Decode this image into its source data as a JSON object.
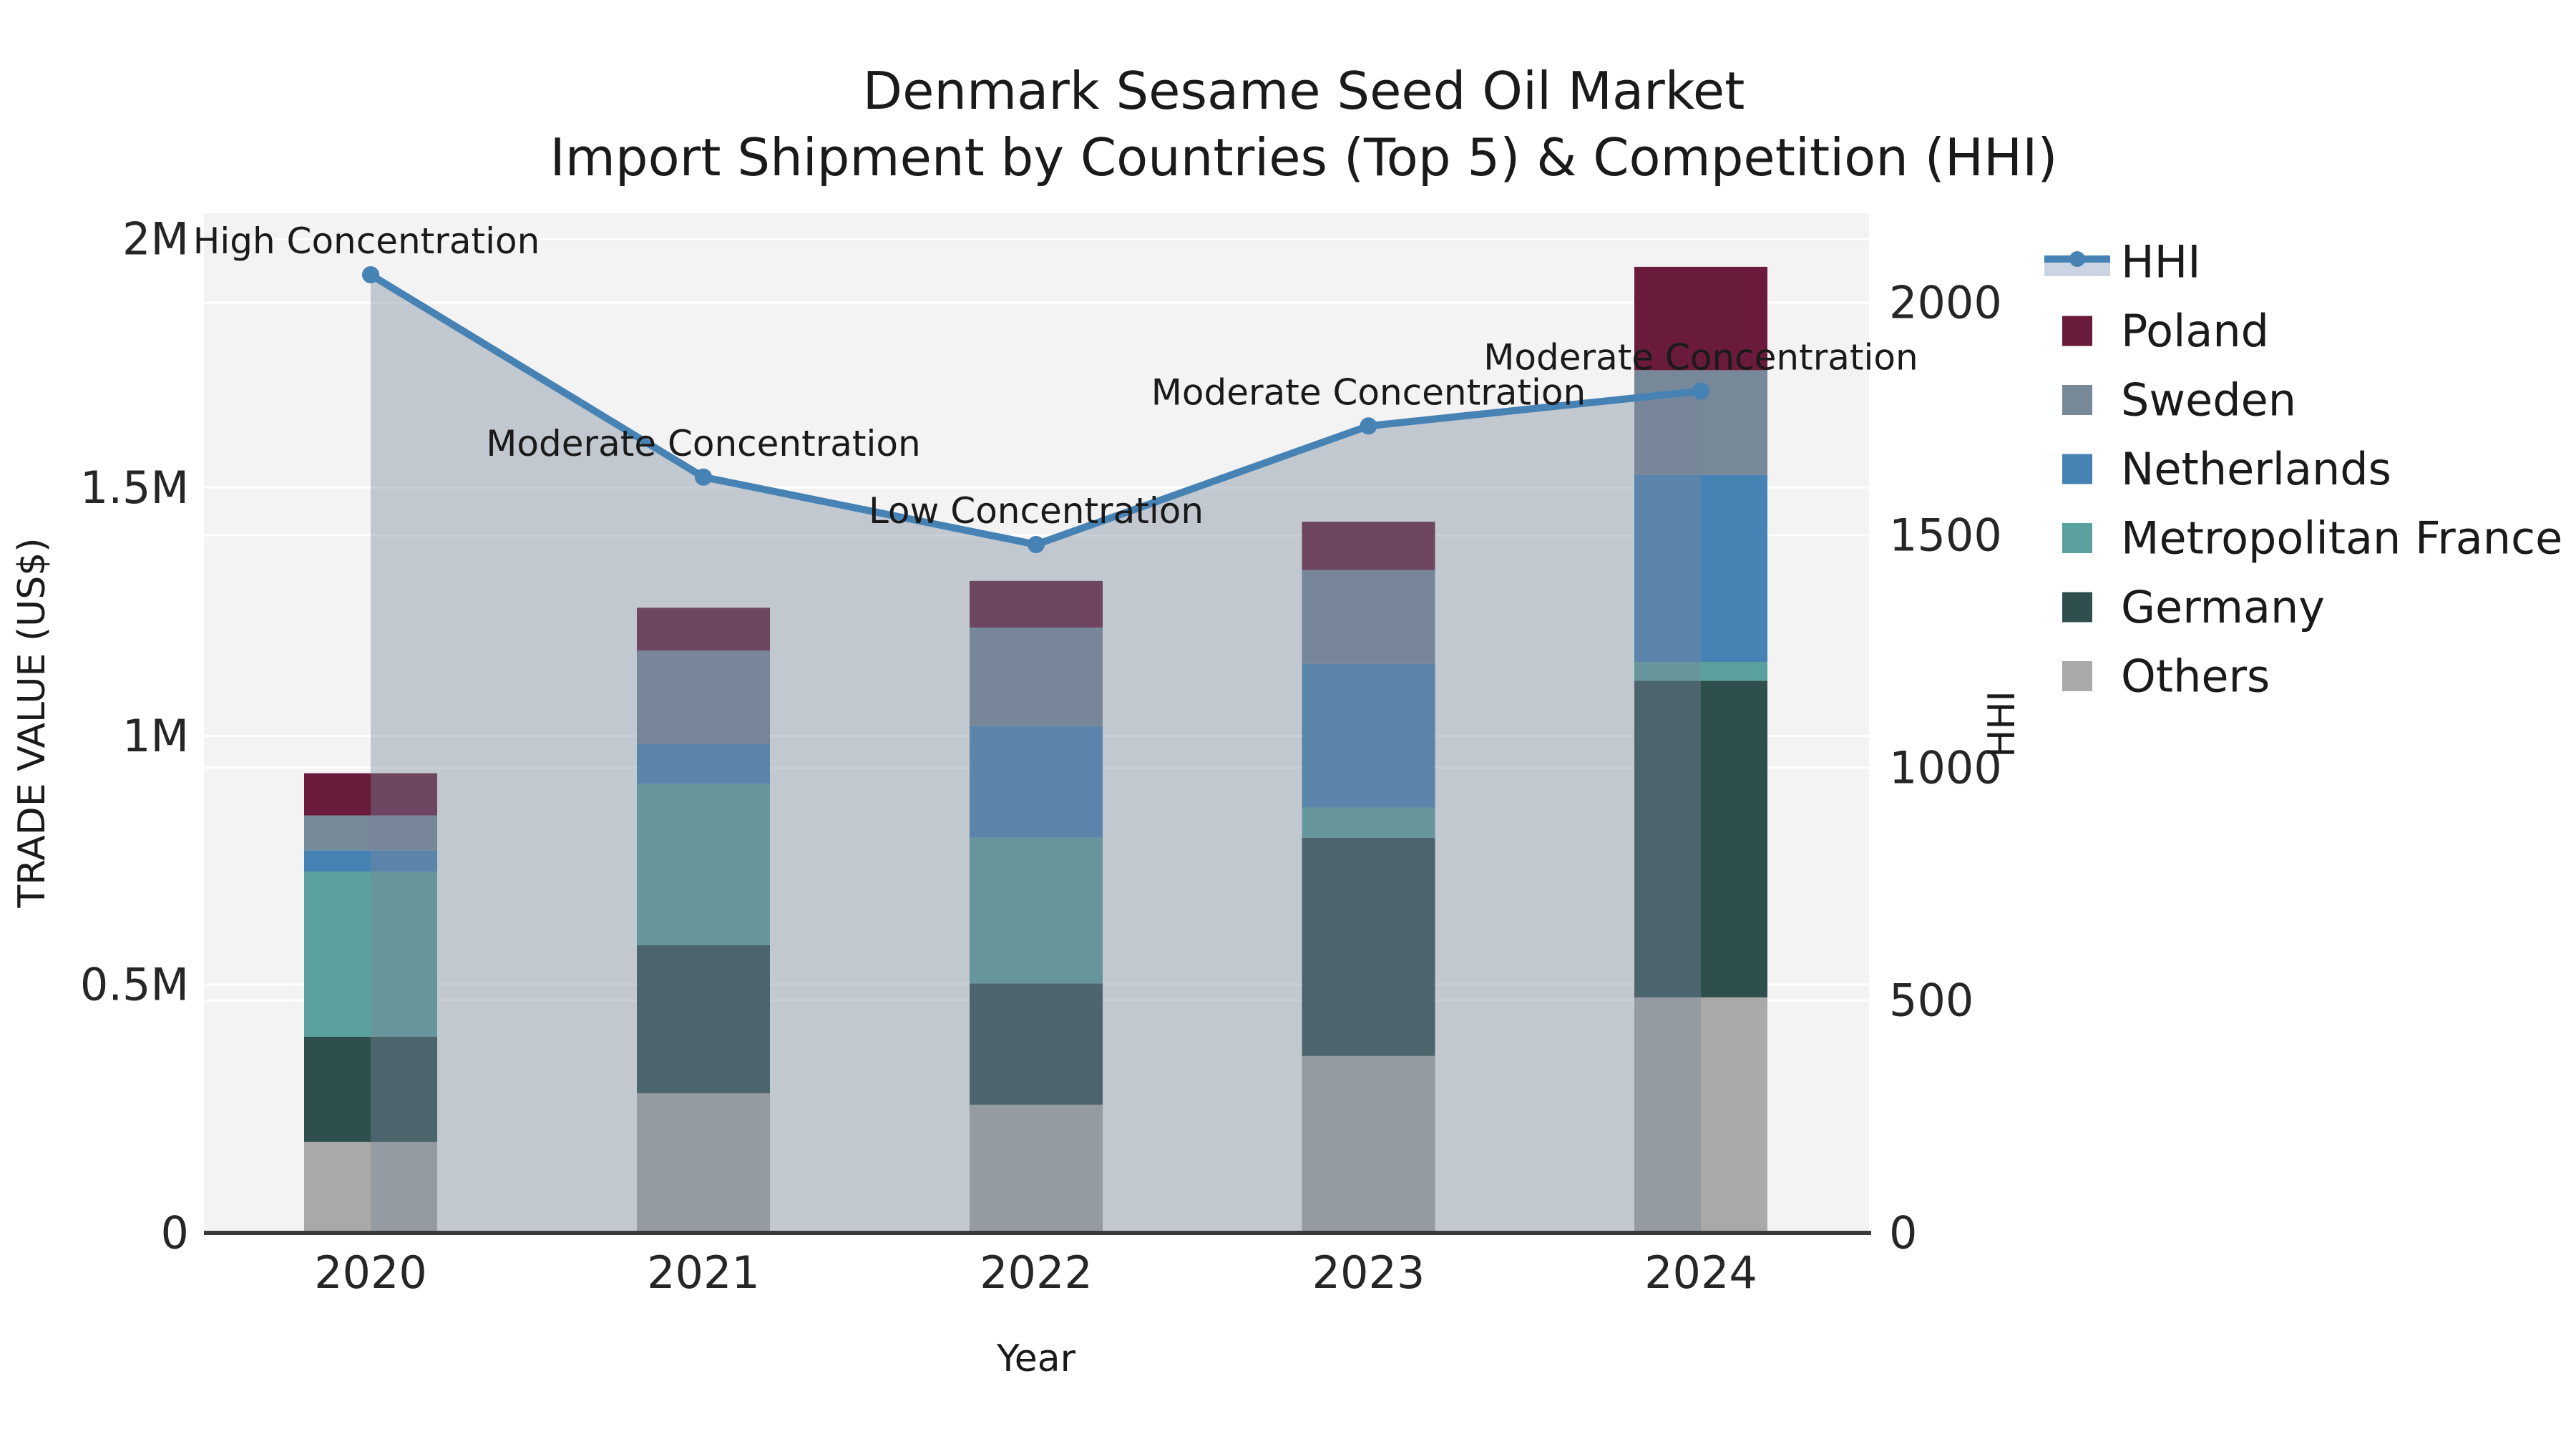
{
  "chart_data": {
    "type": "stacked-bar+line",
    "title": "Denmark Sesame Seed Oil Market",
    "subtitle": "Import Shipment by Countries (Top 5) & Competition (HHI)",
    "xlabel": "Year",
    "ylabel_left": "TRADE VALUE (US$)",
    "ylabel_right": "HHI",
    "categories": [
      "2020",
      "2021",
      "2022",
      "2023",
      "2024"
    ],
    "values_unit": "millions of US$",
    "stack_order_bottom_to_top": [
      "Others",
      "Germany",
      "Metropolitan France",
      "Netherlands",
      "Sweden",
      "Poland"
    ],
    "series": [
      {
        "name": "Others",
        "color": "#a9a9a9",
        "values": [
          0.183,
          0.281,
          0.258,
          0.356,
          0.474
        ]
      },
      {
        "name": "Germany",
        "color": "#2f4f4f",
        "values": [
          0.212,
          0.298,
          0.244,
          0.439,
          0.637
        ]
      },
      {
        "name": "Metropolitan France",
        "color": "#5aa09e",
        "values": [
          0.332,
          0.325,
          0.293,
          0.061,
          0.038
        ]
      },
      {
        "name": "Netherlands",
        "color": "#4682b4",
        "values": [
          0.043,
          0.08,
          0.225,
          0.289,
          0.376
        ]
      },
      {
        "name": "Sweden",
        "color": "#778899",
        "values": [
          0.07,
          0.188,
          0.198,
          0.189,
          0.211
        ]
      },
      {
        "name": "Poland",
        "color": "#6a1b3c",
        "values": [
          0.085,
          0.086,
          0.094,
          0.097,
          0.208
        ]
      }
    ],
    "bar_totals": [
      0.925,
      1.258,
      1.312,
      1.431,
      1.944
    ],
    "hhi": {
      "name": "HHI",
      "line_color": "#4682b4",
      "area_fill": "rgba(119,136,153,0.40)",
      "values": [
        2060,
        1625,
        1480,
        1735,
        1810
      ],
      "annotations": [
        "High Concentration",
        "Moderate Concentration",
        "Low Concentration",
        "Moderate Concentration",
        "Moderate Concentration"
      ]
    },
    "y_left": {
      "tick_values": [
        0,
        0.5,
        1,
        1.5,
        2
      ],
      "tick_labels": [
        "0",
        "0.5M",
        "1M",
        "1.5M",
        "2M"
      ],
      "range": [
        0,
        2.05
      ]
    },
    "y_right": {
      "tick_values": [
        0,
        500,
        1000,
        1500,
        2000
      ],
      "tick_labels": [
        "0",
        "500",
        "1000",
        "1500",
        "2000"
      ],
      "range": [
        0,
        2190
      ]
    },
    "grid": "on",
    "legend_position": "right",
    "legend": [
      {
        "label": "HHI",
        "color": "#4682b4",
        "type": "line",
        "band_color": "#cbd4e2"
      },
      {
        "label": "Poland",
        "color": "#6a1b3c",
        "type": "box"
      },
      {
        "label": "Sweden",
        "color": "#778899",
        "type": "box"
      },
      {
        "label": "Netherlands",
        "color": "#4682b4",
        "type": "box"
      },
      {
        "label": "Metropolitan France",
        "color": "#5aa09e",
        "type": "box"
      },
      {
        "label": "Germany",
        "color": "#2f4f4f",
        "type": "box"
      },
      {
        "label": "Others",
        "color": "#a9a9a9",
        "type": "box"
      }
    ],
    "plot_background": "#f3f3f4",
    "gridline_color": "#ffffff"
  }
}
